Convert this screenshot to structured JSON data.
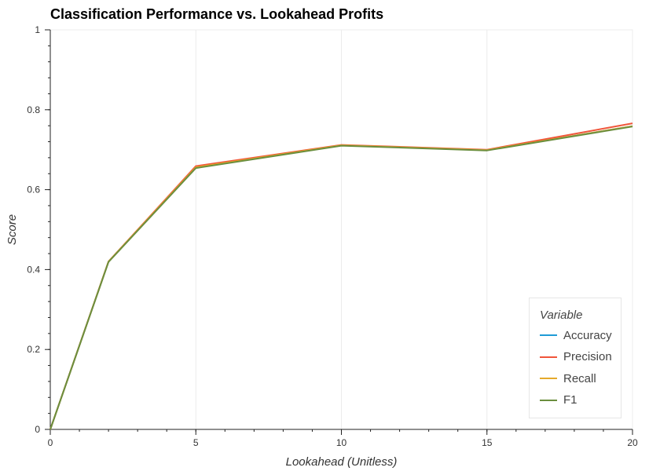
{
  "chart_data": {
    "type": "line",
    "title": "Classification Performance vs. Lookahead Profits",
    "xlabel": "Lookahead (Unitless)",
    "ylabel": "Score",
    "xlim": [
      0,
      20
    ],
    "ylim": [
      0,
      1
    ],
    "xticks": [
      0,
      5,
      10,
      15,
      20
    ],
    "yticks": [
      0,
      0.2,
      0.4,
      0.6,
      0.8,
      1
    ],
    "ytick_labels": [
      "0",
      "0.2",
      "0.4",
      "0.6",
      "0.8",
      "1"
    ],
    "x": [
      0,
      2,
      5,
      10,
      15,
      20
    ],
    "grid": "x",
    "legend_title": "Variable",
    "legend_position": "bottom-right",
    "series": [
      {
        "name": "Accuracy",
        "color": "#1f9bd6",
        "values": [
          0,
          0.42,
          0.656,
          0.711,
          0.699,
          0.759
        ]
      },
      {
        "name": "Precision",
        "color": "#f0553a",
        "values": [
          0,
          0.42,
          0.659,
          0.712,
          0.7,
          0.766
        ]
      },
      {
        "name": "Recall",
        "color": "#e5a92b",
        "values": [
          0,
          0.42,
          0.656,
          0.711,
          0.699,
          0.759
        ]
      },
      {
        "name": "F1",
        "color": "#6b8e3e",
        "values": [
          0,
          0.419,
          0.654,
          0.71,
          0.698,
          0.758
        ]
      }
    ]
  }
}
